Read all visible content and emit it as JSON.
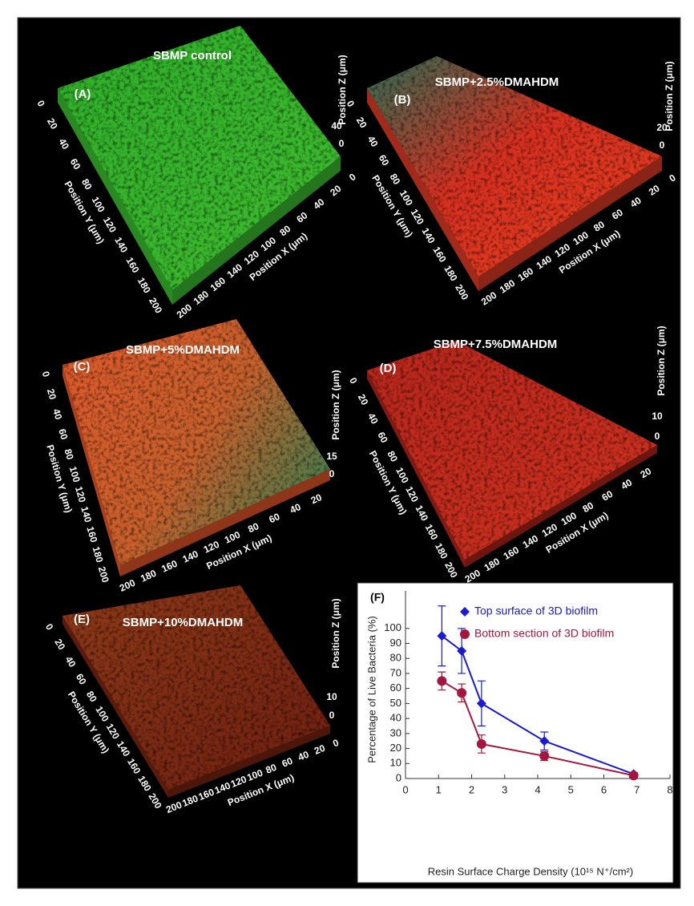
{
  "panels": [
    {
      "letter": "(A)",
      "title": "SBMP control",
      "z_label": "Position Z (μm)",
      "y_label": "Position Y (μm)",
      "x_label": "Position X (μm)",
      "y_ticks": [
        0,
        20,
        40,
        60,
        80,
        100,
        120,
        140,
        160,
        180,
        200
      ],
      "x_ticks": [
        200,
        180,
        160,
        140,
        120,
        100,
        80,
        60,
        40,
        20,
        0
      ],
      "z_ticks": [
        40,
        0
      ]
    },
    {
      "letter": "(B)",
      "title": "SBMP+2.5%DMAHDM",
      "z_label": "Position Z (μm)",
      "y_label": "Position Y (μm)",
      "x_label": "Position X (μm)",
      "y_ticks": [
        0,
        20,
        40,
        60,
        80,
        100,
        120,
        140,
        160,
        180,
        200
      ],
      "x_ticks": [
        200,
        180,
        160,
        140,
        120,
        100,
        80,
        60,
        40,
        20,
        0
      ],
      "z_ticks": [
        20,
        0
      ]
    },
    {
      "letter": "(C)",
      "title": "SBMP+5%DMAHDM",
      "z_label": "Position Z (μm)",
      "y_label": "Position Y (μm)",
      "x_label": "Position X (μm)",
      "y_ticks": [
        0,
        20,
        40,
        60,
        80,
        100,
        120,
        140,
        160,
        180,
        200
      ],
      "x_ticks": [
        200,
        180,
        160,
        140,
        120,
        100,
        80,
        60,
        40,
        20
      ],
      "z_ticks": [
        15,
        0
      ]
    },
    {
      "letter": "(D)",
      "title": "SBMP+7.5%DMAHDM",
      "z_label": "Position Z (μm)",
      "y_label": "Position Y (μm)",
      "x_label": "Position X (μm)",
      "y_ticks": [
        0,
        20,
        40,
        60,
        80,
        100,
        120,
        140,
        160,
        180,
        200
      ],
      "x_ticks": [
        200,
        180,
        160,
        140,
        120,
        100,
        80,
        60,
        40,
        20
      ],
      "z_ticks": [
        10,
        0
      ]
    },
    {
      "letter": "(E)",
      "title": "SBMP+10%DMAHDM",
      "z_label": "Position Z (μm)",
      "y_label": "Position Y (μm)",
      "x_label": "Position X (μm)",
      "y_ticks": [
        0,
        20,
        40,
        60,
        80,
        100,
        120,
        140,
        160,
        180,
        200
      ],
      "x_ticks": [
        200,
        180,
        160,
        140,
        120,
        100,
        80,
        60,
        40,
        20,
        0
      ],
      "z_ticks": [
        10,
        0
      ]
    }
  ],
  "chart_data": {
    "type": "line",
    "title": "(F)",
    "x_label": "Resin Surface Charge Density (10¹⁵ N⁺/cm²)",
    "y_label": "Percentage of Live Bacteria (%)",
    "x": [
      1.1,
      1.7,
      2.3,
      4.2,
      6.9
    ],
    "series": [
      {
        "name": "Top surface of 3D biofilm",
        "color": "#1a1ad0",
        "marker": "diamond",
        "values": [
          95,
          85,
          50,
          25,
          3
        ],
        "errors": [
          20,
          15,
          15,
          6,
          1
        ]
      },
      {
        "name": "Bottom section of 3D biofilm",
        "color": "#a3163f",
        "marker": "circle",
        "values": [
          65,
          57,
          23,
          15,
          2
        ],
        "errors": [
          6,
          6,
          6,
          3,
          1
        ]
      }
    ],
    "xlim": [
      0,
      8
    ],
    "xticks": [
      0,
      1,
      2,
      3,
      4,
      5,
      6,
      7,
      8
    ],
    "ylim": [
      0,
      125
    ],
    "yticks": [
      0,
      10,
      20,
      30,
      40,
      50,
      60,
      70,
      80,
      90,
      100
    ]
  }
}
